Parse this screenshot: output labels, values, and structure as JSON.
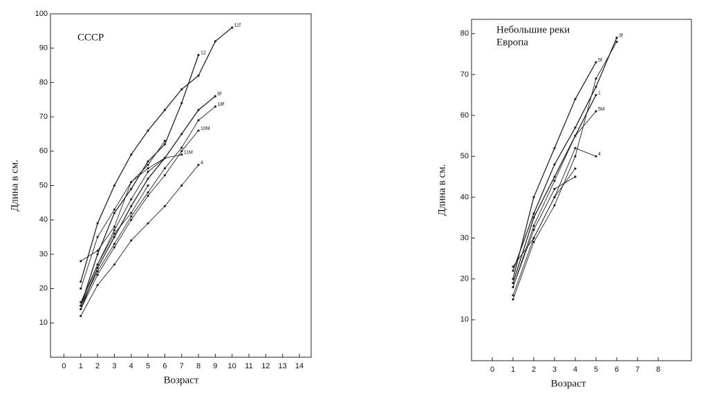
{
  "chart_data": [
    {
      "type": "line",
      "title": [
        "СССР"
      ],
      "x_label": "Возраст",
      "y_label": "Длина в см.",
      "x": [
        1,
        2,
        3,
        4,
        5,
        6,
        7,
        8,
        9,
        10
      ],
      "xlim": [
        -0.8,
        14.7
      ],
      "xticks": [
        0,
        1,
        2,
        3,
        4,
        5,
        6,
        7,
        8,
        9,
        10,
        11,
        12,
        13,
        14
      ],
      "ylim": [
        0,
        100
      ],
      "yticks": [
        10,
        20,
        30,
        40,
        50,
        60,
        70,
        80,
        90,
        100
      ],
      "color": "#222",
      "series": [
        {
          "name": "11f",
          "values": [
            22,
            39,
            50,
            59,
            66,
            72,
            78,
            82,
            92,
            96
          ]
        },
        {
          "name": "12",
          "values": [
            15,
            30,
            42,
            49,
            57,
            62,
            74,
            88,
            null,
            null
          ]
        },
        {
          "name": "6f",
          "values": [
            14,
            26,
            35,
            44,
            52,
            58,
            65,
            72,
            76,
            null
          ]
        },
        {
          "name": "18f",
          "values": [
            15,
            25,
            33,
            41,
            48,
            55,
            61,
            69,
            73,
            null
          ]
        },
        {
          "name": "10M",
          "values": [
            14,
            24,
            32,
            40,
            47,
            53,
            60,
            66,
            null,
            null
          ]
        },
        {
          "name": "11M",
          "values": [
            15,
            27,
            37,
            46,
            54,
            58,
            59,
            null,
            null,
            null
          ]
        },
        {
          "name": "4",
          "values": [
            12,
            21,
            27,
            34,
            39,
            44,
            50,
            56,
            null,
            null
          ]
        },
        {
          "values": [
            28,
            31,
            38,
            51,
            55,
            58,
            null,
            null,
            null,
            null
          ]
        },
        {
          "values": [
            20,
            35,
            43,
            51,
            56,
            63,
            null,
            null,
            null,
            null
          ]
        },
        {
          "values": [
            16,
            27,
            36,
            42,
            50,
            null,
            null,
            null,
            null,
            null
          ]
        }
      ]
    },
    {
      "type": "line",
      "title": [
        "Небольшие реки",
        "Европа"
      ],
      "x_label": "Возраст",
      "y_label": "Длина в см.",
      "x": [
        1,
        2,
        3,
        4,
        5,
        6
      ],
      "xlim": [
        -1,
        9.6
      ],
      "xticks": [
        0,
        1,
        2,
        3,
        4,
        5,
        6,
        7,
        8
      ],
      "ylim": [
        0,
        83.5
      ],
      "yticks": [
        10,
        20,
        30,
        40,
        50,
        60,
        70,
        80
      ],
      "color": "#222",
      "series": [
        {
          "name": "5f",
          "values": [
            20,
            40,
            52,
            64,
            73,
            null
          ]
        },
        {
          "name": "3f",
          "values": [
            22,
            36,
            48,
            57,
            67,
            79
          ]
        },
        {
          "name": "1",
          "values": [
            19,
            35,
            45,
            55,
            65,
            null
          ]
        },
        {
          "name": "5M",
          "values": [
            18,
            33,
            44,
            55,
            61,
            null
          ]
        },
        {
          "name": "4",
          "values": [
            23,
            30,
            40,
            52,
            50,
            null
          ]
        },
        {
          "values": [
            15,
            29,
            38,
            50,
            69,
            78
          ]
        },
        {
          "values": [
            16,
            30,
            40,
            47,
            null,
            null
          ]
        },
        {
          "values": [
            18,
            32,
            42,
            45,
            null,
            null
          ]
        }
      ]
    }
  ]
}
